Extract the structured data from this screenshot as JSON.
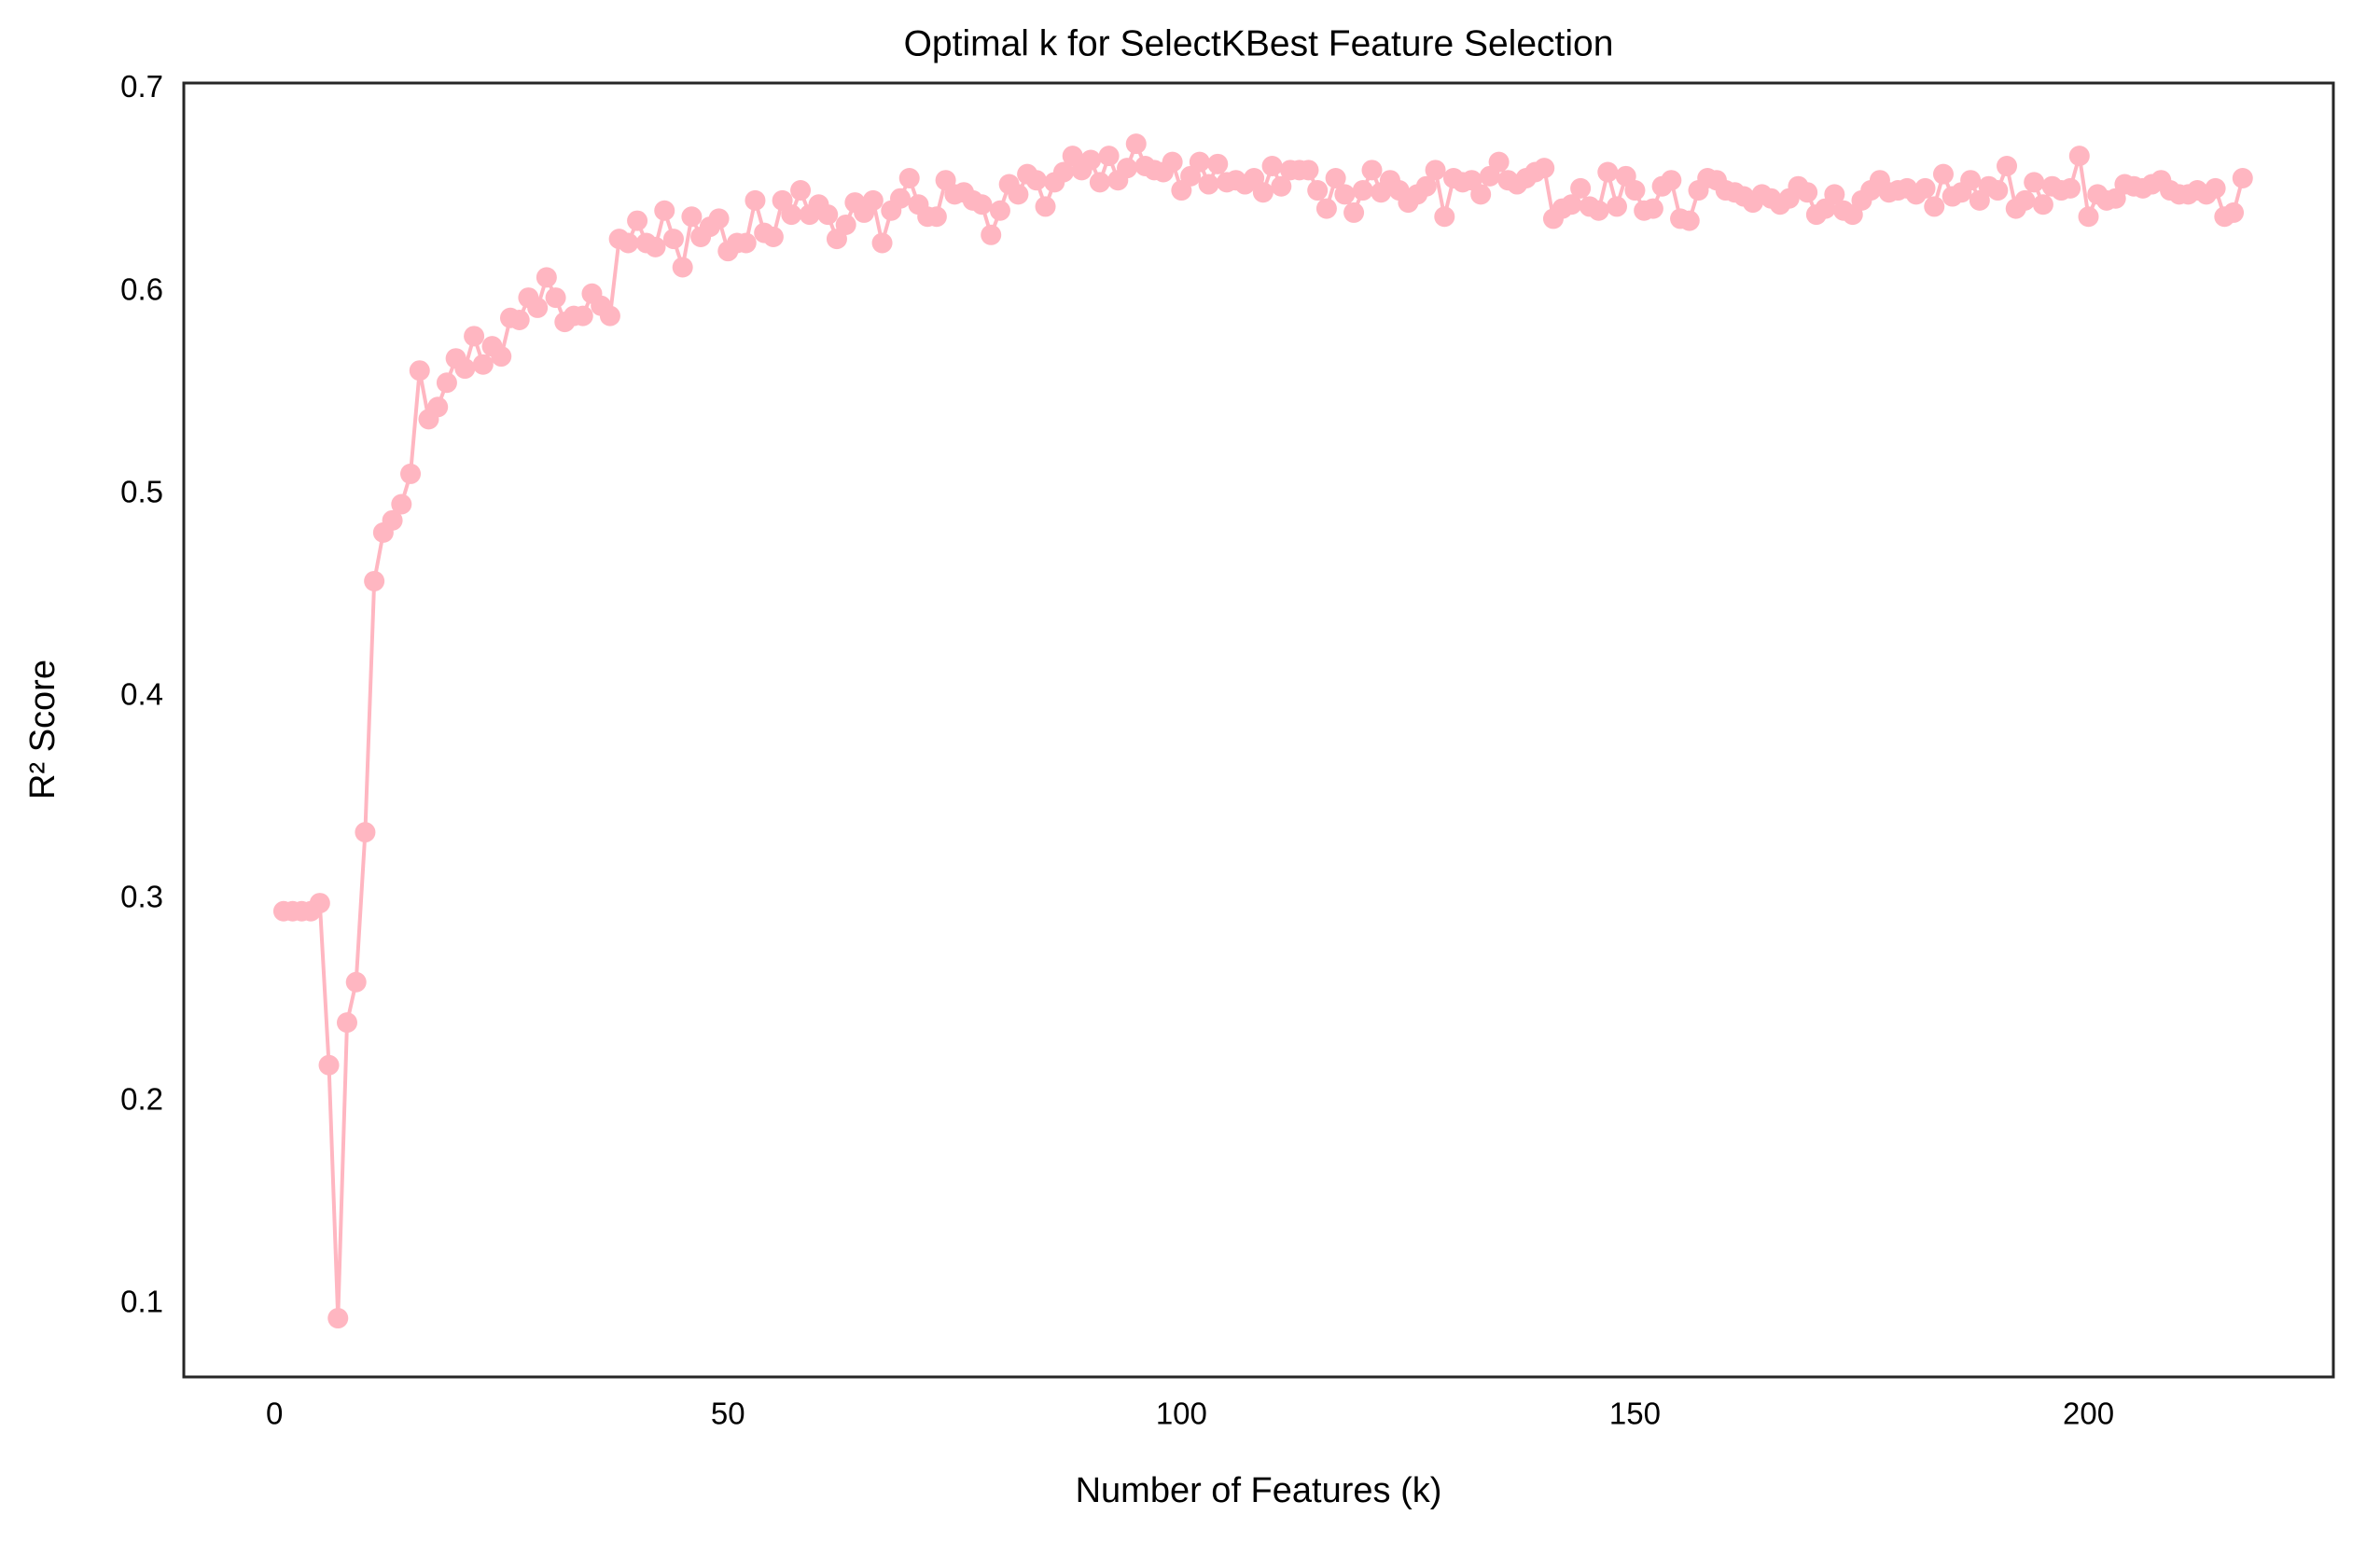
{
  "chart_data": {
    "type": "line",
    "title": "Optimal k for SelectKBest Feature Selection",
    "xlabel": "Number of Features (k)",
    "ylabel": "R² Score",
    "x": [
      1,
      2,
      3,
      4,
      5,
      6,
      7,
      8,
      9,
      10,
      11,
      12,
      13,
      14,
      15,
      16,
      17,
      18,
      19,
      20,
      21,
      22,
      23,
      24,
      25,
      26,
      27,
      28,
      29,
      30,
      31,
      32,
      33,
      34,
      35,
      36,
      37,
      38,
      39,
      40,
      41,
      42,
      43,
      44,
      45,
      46,
      47,
      48,
      49,
      50,
      51,
      52,
      53,
      54,
      55,
      56,
      57,
      58,
      59,
      60,
      61,
      62,
      63,
      64,
      65,
      66,
      67,
      68,
      69,
      70,
      71,
      72,
      73,
      74,
      75,
      76,
      77,
      78,
      79,
      80,
      81,
      82,
      83,
      84,
      85,
      86,
      87,
      88,
      89,
      90,
      91,
      92,
      93,
      94,
      95,
      96,
      97,
      98,
      99,
      100,
      101,
      102,
      103,
      104,
      105,
      106,
      107,
      108,
      109,
      110,
      111,
      112,
      113,
      114,
      115,
      116,
      117,
      118,
      119,
      120,
      121,
      122,
      123,
      124,
      125,
      126,
      127,
      128,
      129,
      130,
      131,
      132,
      133,
      134,
      135,
      136,
      137,
      138,
      139,
      140,
      141,
      142,
      143,
      144,
      145,
      146,
      147,
      148,
      149,
      150,
      151,
      152,
      153,
      154,
      155,
      156,
      157,
      158,
      159,
      160,
      161,
      162,
      163,
      164,
      165,
      166,
      167,
      168,
      169,
      170,
      171,
      172,
      173,
      174,
      175,
      176,
      177,
      178,
      179,
      180,
      181,
      182,
      183,
      184,
      185,
      186,
      187,
      188,
      189,
      190,
      191,
      192,
      193,
      194,
      195,
      196,
      197,
      198,
      199,
      200,
      201,
      202,
      203,
      204,
      205,
      206,
      207,
      208,
      209,
      210,
      211,
      212,
      213,
      214,
      215,
      216,
      217
    ],
    "series": [
      {
        "name": "R² Score",
        "color": "#ffb6c1",
        "values": [
          0.294,
          0.294,
          0.294,
          0.294,
          0.298,
          0.218,
          0.093,
          0.239,
          0.259,
          0.333,
          0.457,
          0.481,
          0.487,
          0.495,
          0.51,
          0.561,
          0.537,
          0.543,
          0.555,
          0.567,
          0.562,
          0.578,
          0.564,
          0.573,
          0.568,
          0.587,
          0.586,
          0.597,
          0.592,
          0.607,
          0.597,
          0.585,
          0.588,
          0.588,
          0.599,
          0.593,
          0.588,
          0.626,
          0.624,
          0.635,
          0.624,
          0.622,
          0.64,
          0.626,
          0.612,
          0.637,
          0.627,
          0.632,
          0.636,
          0.62,
          0.624,
          0.624,
          0.645,
          0.629,
          0.627,
          0.645,
          0.638,
          0.65,
          0.638,
          0.643,
          0.638,
          0.626,
          0.633,
          0.644,
          0.639,
          0.645,
          0.624,
          0.64,
          0.646,
          0.656,
          0.643,
          0.637,
          0.637,
          0.655,
          0.648,
          0.649,
          0.645,
          0.643,
          0.628,
          0.64,
          0.653,
          0.648,
          0.658,
          0.655,
          0.642,
          0.654,
          0.659,
          0.667,
          0.66,
          0.665,
          0.654,
          0.667,
          0.655,
          0.661,
          0.673,
          0.662,
          0.66,
          0.659,
          0.664,
          0.65,
          0.657,
          0.664,
          0.653,
          0.663,
          0.654,
          0.655,
          0.653,
          0.656,
          0.649,
          0.662,
          0.652,
          0.66,
          0.66,
          0.66,
          0.65,
          0.641,
          0.656,
          0.648,
          0.639,
          0.65,
          0.66,
          0.649,
          0.655,
          0.65,
          0.644,
          0.648,
          0.652,
          0.66,
          0.637,
          0.656,
          0.654,
          0.655,
          0.648,
          0.657,
          0.664,
          0.655,
          0.653,
          0.656,
          0.659,
          0.661,
          0.636,
          0.641,
          0.643,
          0.651,
          0.642,
          0.64,
          0.659,
          0.642,
          0.657,
          0.65,
          0.64,
          0.641,
          0.652,
          0.655,
          0.636,
          0.635,
          0.65,
          0.656,
          0.655,
          0.65,
          0.649,
          0.647,
          0.644,
          0.648,
          0.646,
          0.643,
          0.646,
          0.652,
          0.649,
          0.638,
          0.641,
          0.648,
          0.64,
          0.638,
          0.645,
          0.65,
          0.655,
          0.649,
          0.65,
          0.651,
          0.648,
          0.651,
          0.642,
          0.658,
          0.647,
          0.649,
          0.655,
          0.645,
          0.652,
          0.65,
          0.662,
          0.641,
          0.645,
          0.654,
          0.643,
          0.652,
          0.65,
          0.651,
          0.667,
          0.637,
          0.648,
          0.645,
          0.646,
          0.653,
          0.652,
          0.651,
          0.653,
          0.655,
          0.65,
          0.648,
          0.648,
          0.65,
          0.648,
          0.651,
          0.637,
          0.639,
          0.656
        ]
      }
    ],
    "xlim": [
      -10,
      227
    ],
    "ylim": [
      0.064,
      0.703
    ],
    "xticks": [
      0,
      50,
      100,
      150,
      200
    ],
    "yticks": [
      0.1,
      0.2,
      0.3,
      0.4,
      0.5,
      0.6,
      0.7
    ],
    "grid": false
  }
}
